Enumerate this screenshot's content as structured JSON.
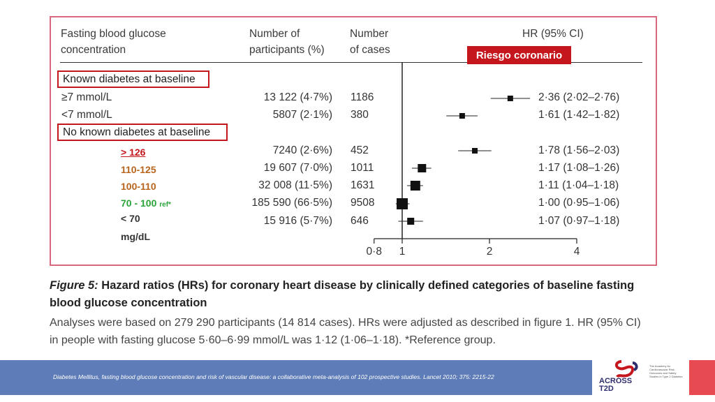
{
  "header": {
    "glucose": "Fasting blood glucose\nconcentration",
    "participants": "Number of\nparticipants (%)",
    "cases": "Number\nof cases",
    "hr": "HR (95% CI)"
  },
  "badge": {
    "label": "Riesgo coronario",
    "color": "#c4161c"
  },
  "sections": {
    "known": "Known diabetes at baseline",
    "noknown": "No known diabetes at baseline"
  },
  "mgdl_labels": [
    {
      "text": "> 126",
      "color": "#c4161c"
    },
    {
      "text": "110-125",
      "color": "#b7651c"
    },
    {
      "text": "100-110",
      "color": "#b7651c"
    },
    {
      "text": "70 - 100",
      "color": "#2aa33a",
      "suffix": "ref*"
    },
    {
      "text": "< 70",
      "color": "#333333"
    },
    {
      "text": "mg/dL",
      "color": "#333333"
    }
  ],
  "chart_data": {
    "type": "forest",
    "x_scale": "log",
    "xlim": [
      0.8,
      4
    ],
    "xticks": [
      "0·8",
      "1",
      "2",
      "4"
    ],
    "reference_line": 1,
    "rows": [
      {
        "label": "≥7 mmol/L",
        "participants": "13 122 (4·7%)",
        "cases": "1186",
        "hr": 2.36,
        "lo": 2.02,
        "hi": 2.76,
        "ci_text": "2·36 (2·02–2·76)",
        "box": 4
      },
      {
        "label": "<7 mmol/L",
        "participants": "5807 (2·1%)",
        "cases": "380",
        "hr": 1.61,
        "lo": 1.42,
        "hi": 1.82,
        "ci_text": "1·61 (1·42–1·82)",
        "box": 4
      },
      {
        "label": "",
        "participants": "7240 (2·6%)",
        "cases": "452",
        "hr": 1.78,
        "lo": 1.56,
        "hi": 2.03,
        "ci_text": "1·78 (1·56–2·03)",
        "box": 4
      },
      {
        "label": "",
        "participants": "19 607 (7·0%)",
        "cases": "1011",
        "hr": 1.17,
        "lo": 1.08,
        "hi": 1.26,
        "ci_text": "1·17 (1·08–1·26)",
        "box": 6
      },
      {
        "label": "",
        "participants": "32 008 (11·5%)",
        "cases": "1631",
        "hr": 1.11,
        "lo": 1.04,
        "hi": 1.18,
        "ci_text": "1·11 (1·04–1·18)",
        "box": 7
      },
      {
        "label": "",
        "participants": "185 590 (66·5%)",
        "cases": "9508",
        "hr": 1.0,
        "lo": 0.95,
        "hi": 1.06,
        "ci_text": "1·00 (0·95–1·06)",
        "box": 8
      },
      {
        "label": "",
        "participants": "15 916 (5·7%)",
        "cases": "646",
        "hr": 1.07,
        "lo": 0.97,
        "hi": 1.18,
        "ci_text": "1·07 (0·97–1·18)",
        "box": 5
      }
    ]
  },
  "figure": {
    "label": "Figure 5:",
    "title": "Hazard ratios (HRs) for coronary heart disease by clinically defined categories of baseline fasting blood glucose concentration",
    "caption": "Analyses were based on 279 290 participants (14 814 cases). HRs were adjusted as described in figure 1. HR (95% CI) in people with fasting glucose 5·60–6·99 mmol/L was 1·12 (1·06–1·18). *Reference group."
  },
  "footer": {
    "citation": "Diabetes Mellitus, fasting blood glucose concentration and risk of vascular disease: a collaborative meta-analysis of 102 prospective studies. Lancet 2010; 375: 2215-22",
    "logo_text": "ACROSS\nT2D",
    "logo_small": "The Academy for Cardiovascular Risk, Outcomes and Safety Studies in Type 2 Diabetes",
    "accent": "#5e7cb7"
  }
}
